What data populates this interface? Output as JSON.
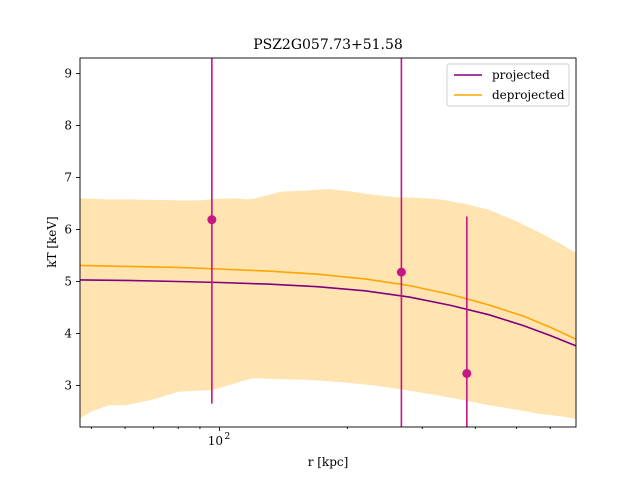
{
  "chart_data": {
    "type": "line",
    "title": "PSZ2G057.73+51.58",
    "xlabel": "r [kpc]",
    "ylabel": "kT [keV]",
    "xscale": "log",
    "xlim": [
      47,
      690
    ],
    "ylim": [
      2.2,
      9.3
    ],
    "xticks": [
      {
        "value": 100,
        "label": "10",
        "sup": "2"
      }
    ],
    "yticks": [
      3,
      4,
      5,
      6,
      7,
      8,
      9
    ],
    "grid": false,
    "legend_position": "top-right",
    "series": [
      {
        "name": "projected",
        "color": "#800080",
        "x": [
          47,
          60,
          80,
          100,
          130,
          170,
          220,
          280,
          350,
          430,
          520,
          600,
          690
        ],
        "y": [
          5.03,
          5.02,
          5.0,
          4.98,
          4.95,
          4.9,
          4.82,
          4.7,
          4.54,
          4.36,
          4.15,
          3.96,
          3.76
        ]
      },
      {
        "name": "deprojected",
        "color": "#ffa500",
        "x": [
          47,
          60,
          80,
          100,
          130,
          170,
          220,
          280,
          350,
          430,
          520,
          600,
          690
        ],
        "y": [
          5.31,
          5.29,
          5.27,
          5.24,
          5.2,
          5.14,
          5.05,
          4.92,
          4.75,
          4.55,
          4.33,
          4.12,
          3.89
        ]
      }
    ],
    "band": {
      "color": "#ffa500",
      "opacity": 0.3,
      "x": [
        47,
        50,
        55,
        60,
        70,
        80,
        90,
        95,
        100,
        110,
        115,
        120,
        140,
        160,
        180,
        200,
        230,
        260,
        290,
        330,
        380,
        430,
        500,
        570,
        630,
        690
      ],
      "upper": [
        6.6,
        6.59,
        6.58,
        6.58,
        6.57,
        6.56,
        6.56,
        6.58,
        6.59,
        6.6,
        6.58,
        6.59,
        6.73,
        6.75,
        6.78,
        6.74,
        6.67,
        6.62,
        6.61,
        6.58,
        6.49,
        6.38,
        6.16,
        5.93,
        5.74,
        5.55
      ],
      "lower": [
        2.37,
        2.5,
        2.62,
        2.62,
        2.73,
        2.88,
        2.9,
        2.91,
        2.95,
        3.05,
        3.1,
        3.14,
        3.12,
        3.11,
        3.08,
        3.05,
        3.0,
        2.94,
        2.88,
        2.8,
        2.71,
        2.62,
        2.53,
        2.45,
        2.41,
        2.36
      ]
    },
    "points": {
      "color": "#c71585",
      "data": [
        {
          "x": 96,
          "y": 6.19,
          "yerr_low": 2.65,
          "yerr_high": 9.3
        },
        {
          "x": 268,
          "y": 5.18,
          "yerr_low": 2.2,
          "yerr_high": 9.3
        },
        {
          "x": 382,
          "y": 3.23,
          "yerr_low": 2.2,
          "yerr_high": 6.25
        }
      ]
    }
  }
}
